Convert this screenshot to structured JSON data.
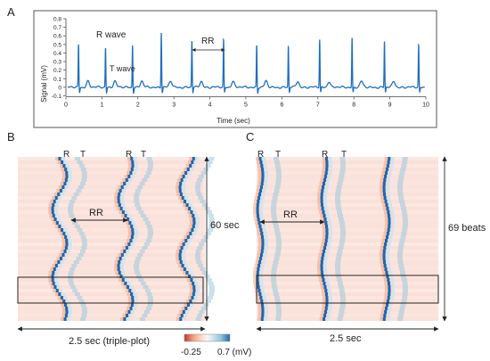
{
  "panel_a": {
    "label": "A",
    "annotations": {
      "r_wave": "R wave",
      "t_wave": "T wave",
      "rr": "RR"
    }
  },
  "panel_b": {
    "label": "B",
    "peak_labels": [
      "R",
      "T",
      "R",
      "T"
    ],
    "rr_label": "RR",
    "duration_label": "60 sec",
    "time_span_label": "2.5 sec (triple-plot)"
  },
  "panel_c": {
    "label": "C",
    "peak_labels": [
      "R",
      "T",
      "R",
      "T"
    ],
    "rr_label": "RR",
    "beats_label": "69 beats",
    "time_span_label": "2.5 sec"
  },
  "colorbar": {
    "min_label": "-0.25",
    "max_label": "0.7 (mV)",
    "colors": [
      "#c0392b",
      "#f4a582",
      "#fddbc7",
      "#f7f7f7",
      "#d1e5f0",
      "#92c5de",
      "#2166ac"
    ]
  },
  "chart_data": [
    {
      "type": "line",
      "xlabel": "Time (sec)",
      "ylabel": "Signal (mV)",
      "xlim": [
        0,
        10
      ],
      "ylim": [
        -0.1,
        0.8
      ],
      "xticks": [
        "0",
        "1",
        "2",
        "3",
        "4",
        "5",
        "6",
        "7",
        "8",
        "9",
        "10"
      ],
      "yticks": [
        "-0.1",
        "0",
        "0.1",
        "0.2",
        "0.3",
        "0.4",
        "0.5",
        "0.6",
        "0.7",
        "0.8"
      ],
      "r_peak_times": [
        0.35,
        1.1,
        1.85,
        2.65,
        3.5,
        4.38,
        5.3,
        6.18,
        7.05,
        7.95,
        8.85,
        9.8
      ],
      "r_peak_amplitudes": [
        0.5,
        0.47,
        0.5,
        0.65,
        0.55,
        0.56,
        0.5,
        0.48,
        0.56,
        0.58,
        0.54,
        0.5
      ],
      "color": "#1f6fbf"
    }
  ]
}
